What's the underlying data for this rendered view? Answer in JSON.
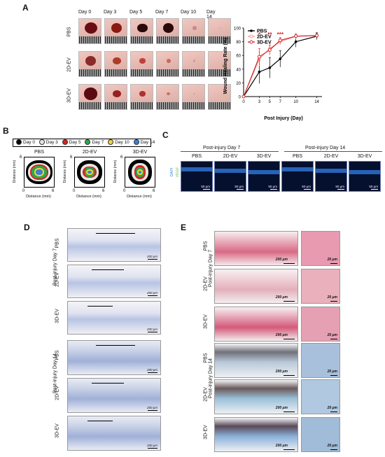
{
  "panel_a": {
    "label": "A",
    "days": [
      "Day 0",
      "Day 3",
      "Day 5",
      "Day 7",
      "Day 10",
      "Day 14"
    ],
    "groups": [
      "PBS",
      "2D-EV",
      "3D-EV"
    ],
    "chart_data": {
      "type": "line",
      "xlabel": "Post Injury (Day)",
      "ylabel": "Wound Healing Rate (%)",
      "x": [
        0,
        3,
        5,
        7,
        10,
        14
      ],
      "xticks": [
        "0",
        "3",
        "5",
        "7",
        "10",
        "14"
      ],
      "yticks": [
        "0",
        "20",
        "40",
        "60",
        "80",
        "100"
      ],
      "ylim": [
        0,
        100
      ],
      "legend_position": "top-left",
      "series": [
        {
          "name": "PBS",
          "color": "#000000",
          "values": [
            0,
            36,
            42,
            55,
            80,
            88
          ],
          "err": [
            0,
            17,
            15,
            12,
            8,
            5
          ]
        },
        {
          "name": "2D-EV",
          "color": "#f29a9a",
          "values": [
            0,
            55,
            70,
            80,
            88,
            89
          ],
          "err": [
            0,
            10,
            8,
            5,
            4,
            3
          ]
        },
        {
          "name": "3D-EV",
          "color": "#d42a2a",
          "values": [
            0,
            58,
            68,
            82,
            88,
            89
          ],
          "err": [
            0,
            12,
            7,
            4,
            3,
            3
          ]
        }
      ],
      "annotations": [
        {
          "x": 3,
          "text": "*",
          "color": "#e02020"
        },
        {
          "x": 5,
          "text": "**",
          "color": "#e02020"
        },
        {
          "x": 7,
          "text": "***",
          "color": "#e02020"
        }
      ]
    }
  },
  "panel_b": {
    "label": "B",
    "legend": [
      {
        "label": "Day 0",
        "color": "#000000"
      },
      {
        "label": "Day 3",
        "color": "#e6e6e6"
      },
      {
        "label": "Day 5",
        "color": "#e02020"
      },
      {
        "label": "Day 7",
        "color": "#2aa84a"
      },
      {
        "label": "Day 10",
        "color": "#f2d23a"
      },
      {
        "label": "Day 14",
        "color": "#3a7fd8"
      }
    ],
    "plots": [
      {
        "title": "PBS"
      },
      {
        "title": "2D-EV"
      },
      {
        "title": "3D-EV"
      }
    ],
    "axis_label": "Distance (mm)",
    "tick_min": "0",
    "tick_max": "6"
  },
  "panel_c": {
    "label": "C",
    "day7": "Post-injury Day 7",
    "day14": "Post-injury Day 14",
    "groups": [
      "PBS",
      "2D-EV",
      "3D-EV"
    ],
    "stain1": "DAPI",
    "stain2": "VEGF",
    "scale": "50 μm"
  },
  "panel_d": {
    "label": "D",
    "day7": "Post-injury Day 7",
    "day14": "Post-injury Day 14",
    "groups": [
      "PBS",
      "2D-EV",
      "3D-EV"
    ],
    "scale": "200 μm"
  },
  "panel_e": {
    "label": "E",
    "day7": "Post-injury Day 7",
    "day14": "Post-injury Day 14",
    "groups": [
      "PBS",
      "2D-EV",
      "3D-EV"
    ],
    "scale_main": "200 μm",
    "scale_inset": "20 μm"
  }
}
